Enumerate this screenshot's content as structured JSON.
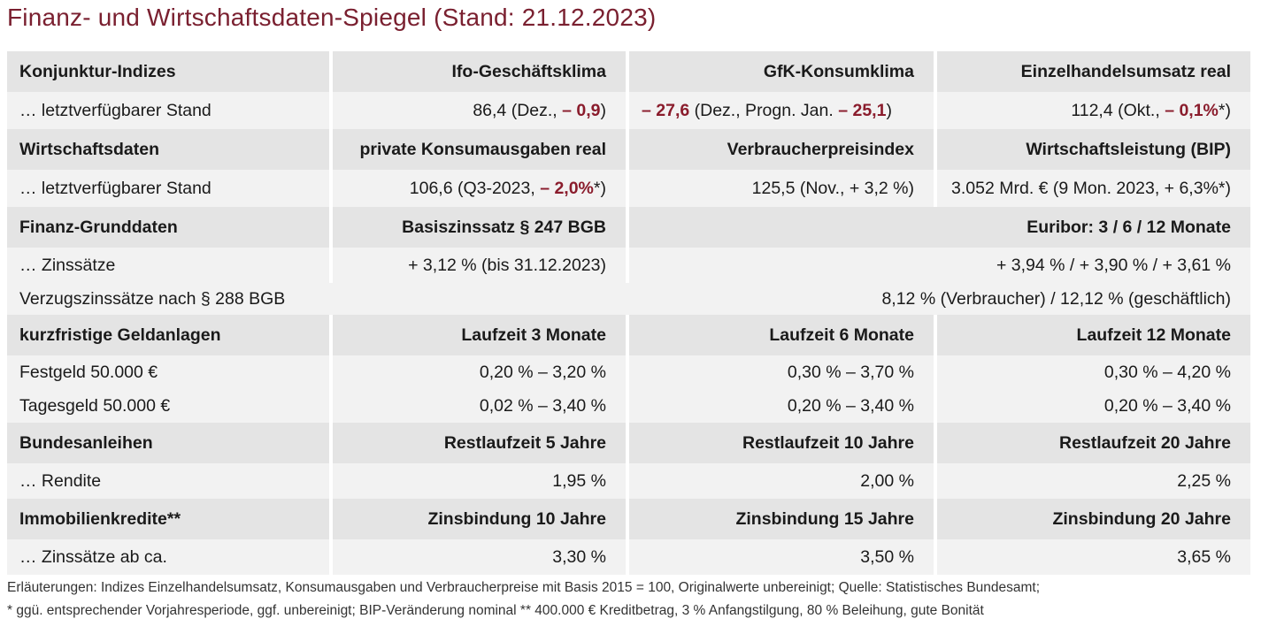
{
  "title": "Finanz- und Wirtschaftsdaten-Spiegel (Stand: 21.12.2023)",
  "rows": {
    "konj_head": [
      "Konjunktur-Indizes",
      "Ifo-Geschäftsklima",
      "GfK-Konsumklima",
      "Einzelhandelsumsatz real"
    ],
    "konj_data": {
      "label": "… letztverfügbarer Stand",
      "ifo_a": "86,4 (Dez., ",
      "ifo_neg": "– 0,9",
      "ifo_b": ")",
      "gfk_neg1": "– 27,6",
      "gfk_a": " (Dez., Progn. Jan. ",
      "gfk_neg2": "– 25,1",
      "gfk_b": ")",
      "ezh_a": "112,4 (Okt., ",
      "ezh_neg": "– 0,1%",
      "ezh_b": "*)"
    },
    "wirt_head": [
      "Wirtschaftsdaten",
      "private Konsumausgaben real",
      "Verbraucherpreisindex",
      "Wirtschaftsleistung (BIP)"
    ],
    "wirt_data": {
      "label": "… letztverfügbarer Stand",
      "konsum_a": "106,6 (Q3-2023, ",
      "konsum_neg": "– 2,0%",
      "konsum_b": "*)",
      "vpi": "125,5 (Nov., + 3,2 %)",
      "bip": "3.052 Mrd. € (9 Mon. 2023, + 6,3%*)"
    },
    "finanz_head": [
      "Finanz-Grunddaten",
      "Basiszinssatz § 247 BGB",
      "Euribor: 3 / 6 / 12 Monate"
    ],
    "zins": [
      "… Zinssätze",
      "+ 3,12 % (bis 31.12.2023)",
      "+ 3,94 % / + 3,90 % / + 3,61 %"
    ],
    "verzug": [
      "Verzugszinssätze nach § 288 BGB",
      "8,12 % (Verbraucher) / 12,12 % (geschäftlich)"
    ],
    "geld_head": [
      "kurzfristige Geldanlagen",
      "Laufzeit 3 Monate",
      "Laufzeit 6 Monate",
      "Laufzeit 12 Monate"
    ],
    "festgeld": [
      "Festgeld 50.000 €",
      "0,20 % – 3,20 %",
      "0,30 % – 3,70 %",
      "0,30 % – 4,20 %"
    ],
    "tagesgeld": [
      "Tagesgeld 50.000 €",
      "0,02 % – 3,40 %",
      "0,20 % – 3,40 %",
      "0,20 % – 3,40 %"
    ],
    "bund_head": [
      "Bundesanleihen",
      "Restlaufzeit 5 Jahre",
      "Restlaufzeit 10 Jahre",
      "Restlaufzeit 20 Jahre"
    ],
    "rendite": [
      "… Rendite",
      "1,95 %",
      "2,00 %",
      "2,25 %"
    ],
    "immo_head": [
      "Immobilienkredite**",
      "Zinsbindung 10 Jahre",
      "Zinsbindung 15 Jahre",
      "Zinsbindung 20 Jahre"
    ],
    "immo_zins": [
      "… Zinssätze ab ca.",
      "3,30 %",
      "3,50 %",
      "3,65 %"
    ]
  },
  "footnotes": [
    "Erläuterungen: Indizes Einzelhandelsumsatz, Konsumausgaben und Verbraucherpreise mit Basis 2015 = 100, Originalwerte unbereinigt; Quelle: Statistisches Bundesamt;",
    "* ggü. entsprechender Vorjahresperiode, ggf. unbereinigt; BIP-Veränderung nominal   ** 400.000 € Kreditbetrag, 3 % Anfangstilgung, 80 % Beleihung, gute Bonität"
  ]
}
